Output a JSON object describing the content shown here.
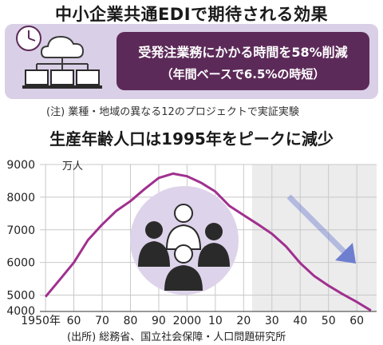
{
  "header": {
    "title": "中小企業共通EDIで期待される効果",
    "callout_line1": "受発注業務にかかる時間を58%削減",
    "callout_line2": "（年間ベースで6.5%の時短）",
    "note": "(注) 業種・地域の異なる12のプロジェクトで実証実験"
  },
  "icons": [
    "clock-icon",
    "cloud-icon",
    "laptop-icon",
    "people-icon",
    "arrow-icon"
  ],
  "colors": {
    "panel": "#d9cfe6",
    "callout": "#5c2a59",
    "line": "#a0308f",
    "projection_shade": "#ececec",
    "people_circle": "#ddd3ea",
    "arrow": "#6f7fd0"
  },
  "chart_data": {
    "type": "line",
    "title": "生産年齢人口は1995年をピークに減少",
    "unit_label": "万人",
    "x_tick_labels": [
      "1950年",
      "60",
      "70",
      "80",
      "90",
      "2000",
      "10",
      "20",
      "30",
      "40",
      "50",
      "60"
    ],
    "x_ticks": [
      1950,
      1960,
      1970,
      1980,
      1990,
      2000,
      2010,
      2020,
      2030,
      2040,
      2050,
      2060
    ],
    "xlim": [
      1948,
      2067
    ],
    "ylim": [
      4500,
      9000
    ],
    "y_ticks": [
      4000,
      5000,
      6000,
      7000,
      8000,
      9000
    ],
    "grid": true,
    "projection_start": 2023,
    "series": [
      {
        "x": [
          1950,
          1955,
          1960,
          1965,
          1970,
          1975,
          1980,
          1985,
          1990,
          1995,
          2000,
          2005,
          2010,
          2015,
          2020,
          2025,
          2030,
          2035,
          2040,
          2045,
          2050,
          2055,
          2060,
          2065
        ],
        "values": [
          4950,
          5470,
          6000,
          6690,
          7160,
          7580,
          7880,
          8250,
          8590,
          8720,
          8640,
          8440,
          8170,
          7730,
          7450,
          7170,
          6880,
          6490,
          5980,
          5580,
          5290,
          5030,
          4790,
          4530
        ]
      }
    ]
  },
  "source": "(出所) 総務省、国立社会保障・人口問題研究所"
}
